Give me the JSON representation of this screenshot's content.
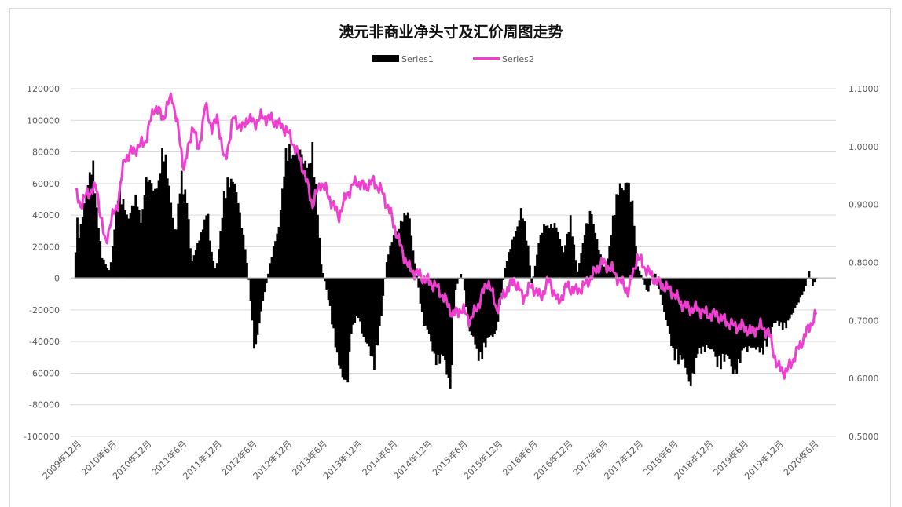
{
  "chart_data": {
    "type": "bar+line",
    "title": "澳元非商业净头寸及汇价周图走势",
    "legend": {
      "position": "top",
      "entries": [
        "Series1",
        "Series2"
      ]
    },
    "colors": {
      "series1": "#000000",
      "series2": "#ee3fd1",
      "grid": "#d9d9d9",
      "text": "#595959"
    },
    "grid": true,
    "left_axis": {
      "ylim": [
        -100000,
        120000
      ],
      "ticks": [
        "120000",
        "100000",
        "80000",
        "60000",
        "40000",
        "20000",
        "0",
        "-20000",
        "-40000",
        "-60000",
        "-80000",
        "-100000"
      ],
      "tick_values": [
        120000,
        100000,
        80000,
        60000,
        40000,
        20000,
        0,
        -20000,
        -40000,
        -60000,
        -80000,
        -100000
      ]
    },
    "right_axis": {
      "ylim": [
        0.5,
        1.1
      ],
      "ticks": [
        "1.1000",
        "1.0000",
        "0.9000",
        "0.8000",
        "0.7000",
        "0.6000",
        "0.5000"
      ],
      "tick_values": [
        1.1,
        1.0,
        0.9,
        0.8,
        0.7,
        0.6,
        0.5
      ]
    },
    "x_axis": {
      "categories": [
        "2009年12月",
        "2010年6月",
        "2010年12月",
        "2011年6月",
        "2011年12月",
        "2012年6月",
        "2012年12月",
        "2013年6月",
        "2013年12月",
        "2014年6月",
        "2014年12月",
        "2015年6月",
        "2015年12月",
        "2016年6月",
        "2016年12月",
        "2017年6月",
        "2017年12月",
        "2018年6月",
        "2018年12月",
        "2019年6月",
        "2019年12月",
        "2020年6月"
      ]
    },
    "series": [
      {
        "name": "Series1",
        "type": "bar",
        "axis": "left",
        "anchors_t": [
          0,
          0.08,
          0.1,
          0.25,
          0.5,
          0.65,
          0.75,
          0.95,
          1.0,
          1.2,
          1.5,
          1.75,
          1.85,
          2.0,
          2.25,
          2.5,
          2.75,
          2.85,
          3.0,
          3.2,
          3.3,
          3.5,
          3.75,
          3.85,
          4.0,
          4.25,
          4.5,
          4.7,
          4.85,
          4.95,
          5.1,
          5.5,
          5.8,
          6.0,
          6.2,
          6.5,
          6.75,
          6.9,
          7.0,
          7.25,
          7.5,
          7.75,
          7.85,
          8.05,
          8.25,
          8.5,
          8.7,
          8.85,
          9.0,
          9.25,
          9.5,
          9.7,
          9.9,
          10.05,
          10.25,
          10.5,
          10.7,
          10.8,
          11.0,
          11.25,
          11.5,
          11.75,
          12.0,
          12.25,
          12.5,
          12.7,
          12.9,
          13.0,
          13.2,
          13.4,
          13.7,
          13.9,
          14.1,
          14.3,
          14.5,
          14.7,
          14.9,
          15.1,
          15.3,
          15.5,
          15.7,
          15.9,
          16.0,
          16.3,
          16.5,
          16.7,
          16.9,
          17.0,
          17.3,
          17.5,
          17.75,
          18.0,
          18.25,
          18.5,
          18.75,
          19.0,
          19.25,
          19.5,
          19.75,
          20.0,
          20.25,
          20.5,
          20.75,
          20.9,
          21.0,
          21.1
        ],
        "anchors_v": [
          20000,
          50000,
          30000,
          55000,
          78000,
          40000,
          15000,
          5000,
          10000,
          60000,
          45000,
          55000,
          40000,
          70000,
          60000,
          90000,
          50000,
          30000,
          70000,
          55000,
          10000,
          25000,
          50000,
          20000,
          5000,
          60000,
          75000,
          40000,
          20000,
          -5000,
          -50000,
          5000,
          40000,
          85000,
          95000,
          80000,
          90000,
          45000,
          10000,
          -20000,
          -65000,
          -70000,
          -40000,
          -25000,
          -45000,
          -60000,
          -30000,
          10000,
          25000,
          40000,
          45000,
          5000,
          -30000,
          -40000,
          -55000,
          -60000,
          -75000,
          -10000,
          5000,
          -40000,
          -55000,
          -45000,
          -35000,
          10000,
          30000,
          50000,
          20000,
          -5000,
          25000,
          40000,
          35000,
          20000,
          40000,
          5000,
          30000,
          50000,
          20000,
          5000,
          40000,
          65000,
          70000,
          45000,
          10000,
          -10000,
          5000,
          -15000,
          -40000,
          -50000,
          -60000,
          -72000,
          -55000,
          -45000,
          -60000,
          -55000,
          -65000,
          -55000,
          -45000,
          -55000,
          -40000,
          -30000,
          -35000,
          -20000,
          -10000,
          5000,
          -5000,
          0
        ],
        "samples": 420
      },
      {
        "name": "Series2",
        "type": "line",
        "axis": "right",
        "anchors_t": [
          0,
          0.15,
          0.35,
          0.6,
          0.85,
          1.0,
          1.2,
          1.4,
          1.6,
          1.8,
          2.0,
          2.25,
          2.5,
          2.75,
          2.95,
          3.1,
          3.35,
          3.5,
          3.7,
          3.9,
          4.05,
          4.25,
          4.5,
          4.75,
          4.9,
          5.1,
          5.25,
          5.5,
          5.75,
          6.0,
          6.25,
          6.5,
          6.75,
          7.0,
          7.25,
          7.5,
          7.75,
          8.0,
          8.25,
          8.5,
          8.75,
          9.0,
          9.25,
          9.5,
          9.75,
          10.0,
          10.25,
          10.5,
          10.75,
          11.0,
          11.25,
          11.5,
          11.75,
          12.0,
          12.25,
          12.5,
          12.75,
          13.0,
          13.25,
          13.5,
          13.75,
          14.0,
          14.25,
          14.5,
          14.75,
          15.0,
          15.25,
          15.5,
          15.75,
          16.0,
          16.25,
          16.5,
          16.75,
          17.0,
          17.25,
          17.5,
          17.75,
          18.0,
          18.25,
          18.5,
          18.75,
          19.0,
          19.25,
          19.5,
          19.75,
          20.0,
          20.25,
          20.5,
          20.75,
          21.0,
          21.1
        ],
        "anchors_v": [
          0.92,
          0.9,
          0.92,
          0.93,
          0.83,
          0.87,
          0.9,
          0.98,
          0.99,
          1.0,
          1.01,
          1.07,
          1.05,
          1.09,
          1.02,
          0.96,
          1.04,
          0.99,
          1.07,
          1.03,
          1.05,
          0.97,
          1.05,
          1.03,
          1.05,
          1.04,
          1.05,
          1.05,
          1.04,
          1.03,
          1.0,
          0.96,
          0.9,
          0.94,
          0.91,
          0.88,
          0.92,
          0.94,
          0.93,
          0.94,
          0.92,
          0.88,
          0.83,
          0.79,
          0.78,
          0.77,
          0.76,
          0.74,
          0.71,
          0.72,
          0.7,
          0.73,
          0.77,
          0.72,
          0.75,
          0.77,
          0.74,
          0.76,
          0.74,
          0.77,
          0.73,
          0.76,
          0.75,
          0.76,
          0.78,
          0.8,
          0.79,
          0.77,
          0.75,
          0.81,
          0.79,
          0.77,
          0.76,
          0.75,
          0.73,
          0.72,
          0.72,
          0.71,
          0.71,
          0.7,
          0.69,
          0.69,
          0.68,
          0.69,
          0.68,
          0.62,
          0.61,
          0.64,
          0.67,
          0.7,
          0.71
        ],
        "samples": 560
      }
    ]
  }
}
